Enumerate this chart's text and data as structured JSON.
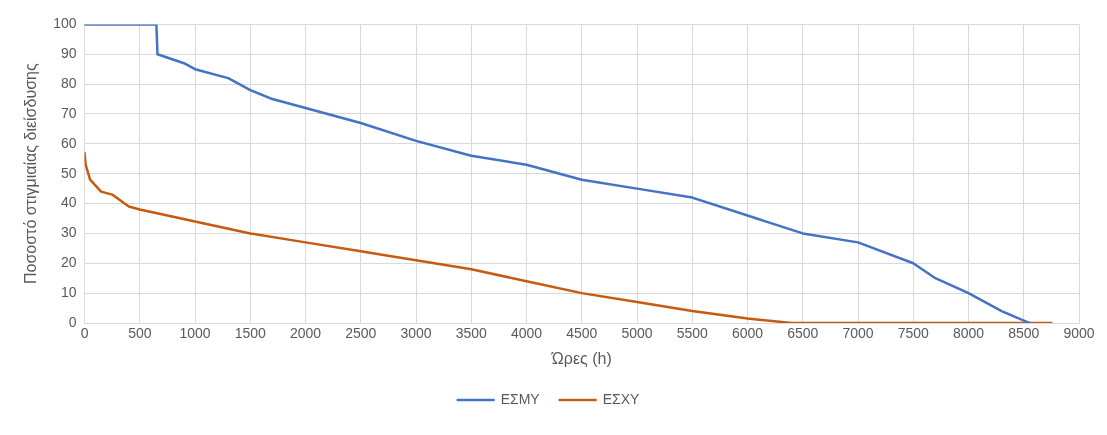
{
  "chart_data": {
    "type": "line",
    "xlabel": "Ώρες (h)",
    "ylabel": "Ποσοστό στιγμιαίας διείσδυσης",
    "xlim": [
      0,
      9000
    ],
    "xticks": [
      0,
      500,
      1000,
      1500,
      2000,
      2500,
      3000,
      3500,
      4000,
      4500,
      5000,
      5500,
      6000,
      6500,
      7000,
      7500,
      8000,
      8500,
      9000
    ],
    "ylim": [
      0,
      100
    ],
    "yticks": [
      0,
      10,
      20,
      30,
      40,
      50,
      60,
      70,
      80,
      90,
      100
    ],
    "grid": true,
    "legend": "bottom",
    "marker": "none",
    "line_style": "solid",
    "series": [
      {
        "name": "ΕΣΜΥ",
        "color": "#4472c4",
        "x": [
          0,
          650,
          660,
          900,
          1000,
          1300,
          1500,
          1700,
          2000,
          2500,
          3000,
          3500,
          4000,
          4500,
          5000,
          5500,
          6000,
          6500,
          7000,
          7500,
          7700,
          8000,
          8300,
          8550
        ],
        "values": [
          100,
          100,
          90,
          87,
          85,
          82,
          78,
          75,
          72,
          67,
          61,
          56,
          53,
          48,
          45,
          42,
          36,
          30,
          27,
          20,
          15,
          10,
          4,
          0
        ]
      },
      {
        "name": "ΕΣΧΥ",
        "color": "#c55a11",
        "x": [
          0,
          10,
          50,
          100,
          150,
          250,
          400,
          500,
          1000,
          1500,
          2000,
          2500,
          3000,
          3500,
          4000,
          4500,
          5000,
          5500,
          6000,
          6400,
          8750
        ],
        "values": [
          57,
          53,
          48,
          46,
          44,
          43,
          39,
          38,
          34,
          30,
          27,
          24,
          21,
          18,
          14,
          10,
          7,
          4,
          1.5,
          0,
          0
        ]
      }
    ]
  }
}
